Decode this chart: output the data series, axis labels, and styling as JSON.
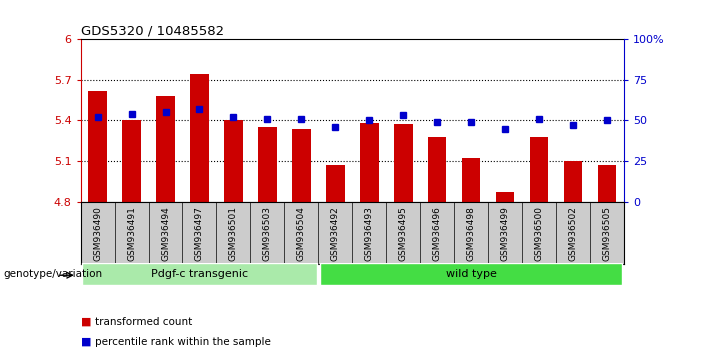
{
  "title": "GDS5320 / 10485582",
  "samples": [
    "GSM936490",
    "GSM936491",
    "GSM936494",
    "GSM936497",
    "GSM936501",
    "GSM936503",
    "GSM936504",
    "GSM936492",
    "GSM936493",
    "GSM936495",
    "GSM936496",
    "GSM936498",
    "GSM936499",
    "GSM936500",
    "GSM936502",
    "GSM936505"
  ],
  "bar_values": [
    5.62,
    5.4,
    5.58,
    5.74,
    5.4,
    5.35,
    5.34,
    5.07,
    5.38,
    5.37,
    5.28,
    5.12,
    4.87,
    5.28,
    5.1,
    5.07
  ],
  "percentile_values": [
    52,
    54,
    55,
    57,
    52,
    51,
    51,
    46,
    50,
    53,
    49,
    49,
    45,
    51,
    47,
    50
  ],
  "ylim_left": [
    4.8,
    6.0
  ],
  "ylim_right": [
    0,
    100
  ],
  "yticks_left": [
    4.8,
    5.1,
    5.4,
    5.7,
    6.0
  ],
  "ytick_labels_left": [
    "4.8",
    "5.1",
    "5.4",
    "5.7",
    "6"
  ],
  "yticks_right": [
    0,
    25,
    50,
    75,
    100
  ],
  "ytick_labels_right": [
    "0",
    "25",
    "50",
    "75",
    "100%"
  ],
  "gridlines": [
    5.1,
    5.4,
    5.7
  ],
  "groups": [
    {
      "label": "Pdgf-c transgenic",
      "start": 0,
      "end": 6,
      "color": "#aaeaaa"
    },
    {
      "label": "wild type",
      "start": 7,
      "end": 15,
      "color": "#44dd44"
    }
  ],
  "bar_color": "#CC0000",
  "percentile_color": "#0000CC",
  "bar_bottom": 4.8,
  "legend_items": [
    {
      "label": "transformed count",
      "color": "#CC0000"
    },
    {
      "label": "percentile rank within the sample",
      "color": "#0000CC"
    }
  ],
  "xlabel": "genotype/variation",
  "background_color": "#ffffff",
  "tick_label_area_color": "#cccccc"
}
